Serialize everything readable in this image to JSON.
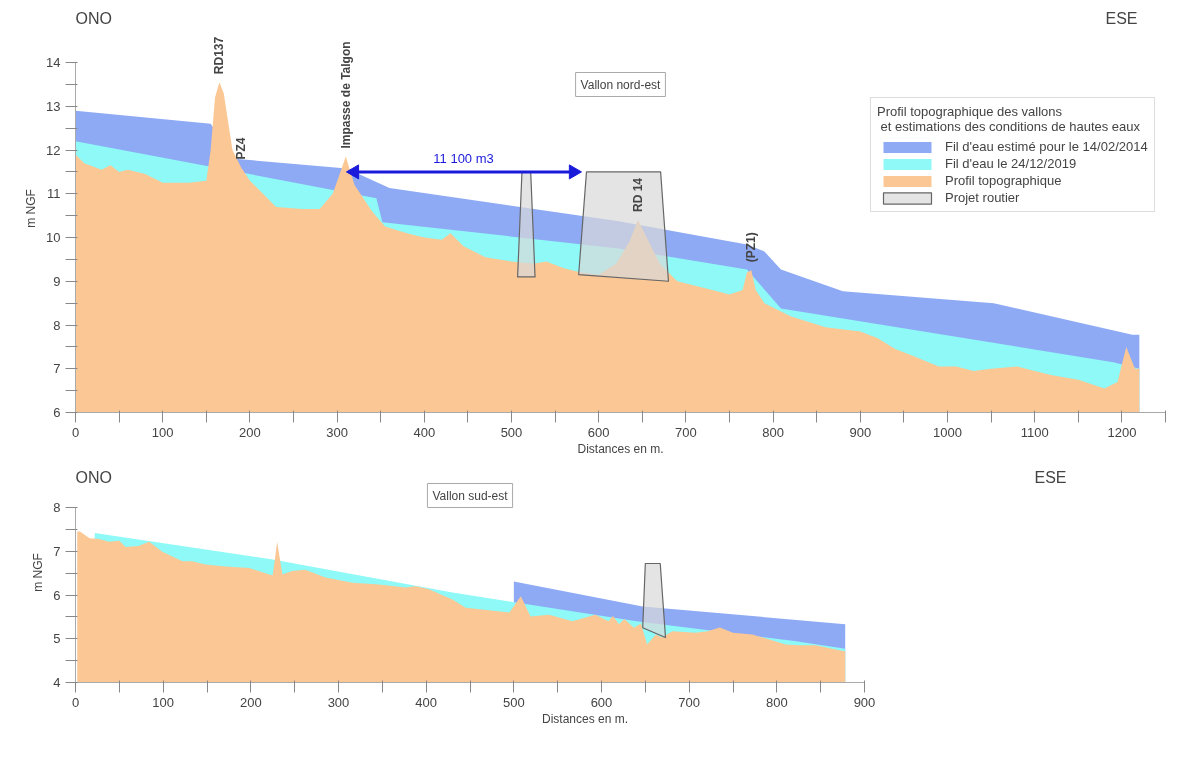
{
  "chart_data": [
    {
      "type": "area",
      "title": "Vallon nord-est",
      "xlabel": "Distances en m.",
      "ylabel": "m NGF",
      "xlim": [
        0,
        1250
      ],
      "ylim": [
        6,
        14
      ],
      "xticks": [
        0,
        {
          "value": 50,
          "label": null
        },
        100,
        {
          "value": 150,
          "label": null
        },
        200,
        {
          "value": 250,
          "label": null
        },
        300,
        {
          "value": 350,
          "label": null
        },
        400,
        {
          "value": 450,
          "label": null
        },
        500,
        {
          "value": 550,
          "label": null
        },
        600,
        {
          "value": 650,
          "label": null
        },
        700,
        {
          "value": 750,
          "label": null
        },
        800,
        {
          "value": 850,
          "label": null
        },
        900,
        {
          "value": 950,
          "label": null
        },
        1000,
        {
          "value": 1050,
          "label": null
        },
        1100,
        {
          "value": 1150,
          "label": null
        },
        1200,
        {
          "value": 1250,
          "label": null
        }
      ],
      "yticks": [
        6,
        {
          "value": 6.5,
          "label": null
        },
        7,
        {
          "value": 7.5,
          "label": null
        },
        8,
        {
          "value": 8.5,
          "label": null
        },
        9,
        {
          "value": 9.5,
          "label": null
        },
        10,
        {
          "value": 10.5,
          "label": null
        },
        11,
        {
          "value": 11.5,
          "label": null
        },
        12,
        {
          "value": 12.5,
          "label": null
        },
        13,
        {
          "value": 13.5,
          "label": null
        },
        14
      ],
      "legend": "top right",
      "legend_title": "Profil topographique des vallons\n et estimations des conditions de hautes eaux",
      "annotations": [
        "ONO",
        "ESE",
        {
          "text": "RD137",
          "x": 165,
          "y": 13.55
        },
        {
          "text": "PZ4",
          "x": 190,
          "y": 11.6
        },
        {
          "text": "Impasse de Talgon",
          "x": 310,
          "y": 11.85
        },
        {
          "text": "11 100 m3",
          "x": 445,
          "y": 11.5
        },
        {
          "text": "RD 14",
          "x": 645,
          "y": 10.4
        },
        {
          "text": "(PZ1)",
          "x": 775,
          "y": 9.25
        }
      ],
      "series": [
        {
          "name": "Fil d'eau estimé pour le 14/02/2014",
          "color": "#8eaaf5",
          "x": [
            0,
            155,
            182,
            311,
            360,
            623,
            770,
            790,
            809,
            880,
            1053,
            1212,
            1220
          ],
          "values": [
            12.9,
            12.6,
            11.8,
            11.58,
            11.13,
            10.37,
            9.84,
            9.68,
            9.27,
            8.77,
            8.5,
            7.78,
            7.78
          ]
        },
        {
          "name": "Fil d'eau le 24/12/2019",
          "color": "#8ff9f7",
          "x": [
            0,
            345,
            352,
            623,
            770,
            809,
            880,
            1190,
            1220
          ],
          "values": [
            12.2,
            10.9,
            10.35,
            9.75,
            9.27,
            8.38,
            8.15,
            7.15,
            7.0
          ]
        },
        {
          "name": "Profil topographique",
          "color": "#fbc794",
          "x": [
            0,
            10,
            30,
            40,
            50,
            60,
            80,
            100,
            130,
            150,
            155,
            160,
            165,
            170,
            180,
            190,
            200,
            215,
            230,
            260,
            280,
            295,
            310,
            320,
            340,
            355,
            380,
            400,
            420,
            430,
            445,
            470,
            500,
            525,
            540,
            560,
            580,
            600,
            620,
            635,
            645,
            655,
            670,
            690,
            720,
            750,
            765,
            770,
            775,
            780,
            790,
            820,
            860,
            900,
            920,
            940,
            960,
            990,
            1010,
            1030,
            1050,
            1080,
            1100,
            1120,
            1150,
            1180,
            1195,
            1205,
            1215,
            1220
          ],
          "values": [
            11.9,
            11.7,
            11.55,
            11.65,
            11.5,
            11.55,
            11.45,
            11.25,
            11.25,
            11.3,
            12.0,
            13.2,
            13.55,
            13.3,
            12.0,
            11.6,
            11.3,
            11.0,
            10.7,
            10.65,
            10.65,
            11.0,
            11.85,
            11.2,
            10.6,
            10.25,
            10.1,
            10.0,
            9.95,
            10.1,
            9.8,
            9.55,
            9.45,
            9.4,
            9.45,
            9.3,
            9.2,
            9.15,
            9.4,
            9.9,
            10.4,
            10.0,
            9.4,
            9.0,
            8.85,
            8.7,
            8.8,
            9.2,
            9.25,
            8.8,
            8.5,
            8.2,
            7.95,
            7.85,
            7.7,
            7.45,
            7.3,
            7.05,
            7.05,
            6.95,
            7.0,
            7.05,
            6.95,
            6.85,
            6.75,
            6.55,
            6.7,
            7.5,
            7.0,
            7.0
          ]
        },
        {
          "name": "Projet routier",
          "color": "#d9d9d9",
          "x": [
            507,
            512,
            522,
            527,
            507,
            null,
            577,
            586,
            671,
            680,
            577
          ],
          "values": [
            9.1,
            11.5,
            11.5,
            9.1,
            9.1,
            null,
            9.15,
            11.5,
            11.5,
            9.0,
            9.15
          ]
        },
        {
          "type": "line",
          "color": "#1a1adb",
          "marker": "triangle",
          "x": [
            320,
            571
          ],
          "values": [
            11.5,
            11.5
          ]
        }
      ]
    },
    {
      "type": "area",
      "title": "Vallon sud-est",
      "xlabel": "Distances en m.",
      "ylabel": "m NGF",
      "xlim": [
        0,
        900
      ],
      "ylim": [
        4,
        8
      ],
      "xticks": [
        0,
        {
          "value": 50,
          "label": null
        },
        100,
        {
          "value": 150,
          "label": null
        },
        200,
        {
          "value": 250,
          "label": null
        },
        300,
        {
          "value": 350,
          "label": null
        },
        400,
        {
          "value": 450,
          "label": null
        },
        500,
        {
          "value": 550,
          "label": null
        },
        600,
        {
          "value": 650,
          "label": null
        },
        700,
        {
          "value": 750,
          "label": null
        },
        800,
        {
          "value": 850,
          "label": null
        },
        900
      ],
      "yticks": [
        4,
        {
          "value": 4.5,
          "label": null
        },
        5,
        {
          "value": 5.5,
          "label": null
        },
        6,
        {
          "value": 6.5,
          "label": null
        },
        7,
        {
          "value": 7.5,
          "label": null
        },
        8
      ],
      "annotations": [
        "ONO",
        "ESE"
      ],
      "series": [
        {
          "color": "#8eaaf5",
          "x": [
            500,
            647,
            878
          ],
          "values": [
            6.31,
            5.74,
            5.33
          ]
        },
        {
          "color": "#8ff9f7",
          "x": [
            22,
            225,
            430,
            495,
            640,
            820,
            878
          ],
          "values": [
            7.42,
            6.81,
            6.06,
            5.85,
            5.4,
            4.95,
            4.77
          ]
        },
        {
          "color": "#fbc794",
          "x": [
            2,
            5,
            16,
            27,
            38,
            50,
            57,
            72,
            84,
            99,
            122,
            133,
            148,
            171,
            198,
            221,
            225,
            230,
            236,
            247,
            262,
            285,
            316,
            346,
            377,
            388,
            403,
            430,
            445,
            495,
            508,
            519,
            540,
            567,
            593,
            608,
            613,
            620,
            626,
            637,
            645,
            652,
            662,
            669,
            681,
            707,
            721,
            735,
            750,
            772,
            810,
            825,
            844,
            878
          ],
          "values": [
            7.45,
            7.45,
            7.3,
            7.28,
            7.22,
            7.24,
            7.1,
            7.12,
            7.22,
            6.99,
            6.77,
            6.77,
            6.7,
            6.65,
            6.62,
            6.47,
            6.45,
            7.22,
            6.47,
            6.55,
            6.58,
            6.4,
            6.28,
            6.24,
            6.17,
            6.2,
            6.13,
            5.9,
            5.71,
            5.6,
            5.97,
            5.51,
            5.55,
            5.4,
            5.55,
            5.4,
            5.52,
            5.33,
            5.45,
            5.25,
            5.35,
            4.87,
            5.1,
            5.03,
            5.17,
            5.14,
            5.17,
            5.26,
            5.14,
            5.1,
            4.87,
            4.85,
            4.85,
            4.71
          ]
        },
        {
          "color": "#d9d9d9",
          "x": [
            647,
            650,
            667,
            673,
            647
          ],
          "values": [
            5.25,
            6.72,
            6.72,
            5.03,
            5.25
          ]
        }
      ]
    }
  ]
}
